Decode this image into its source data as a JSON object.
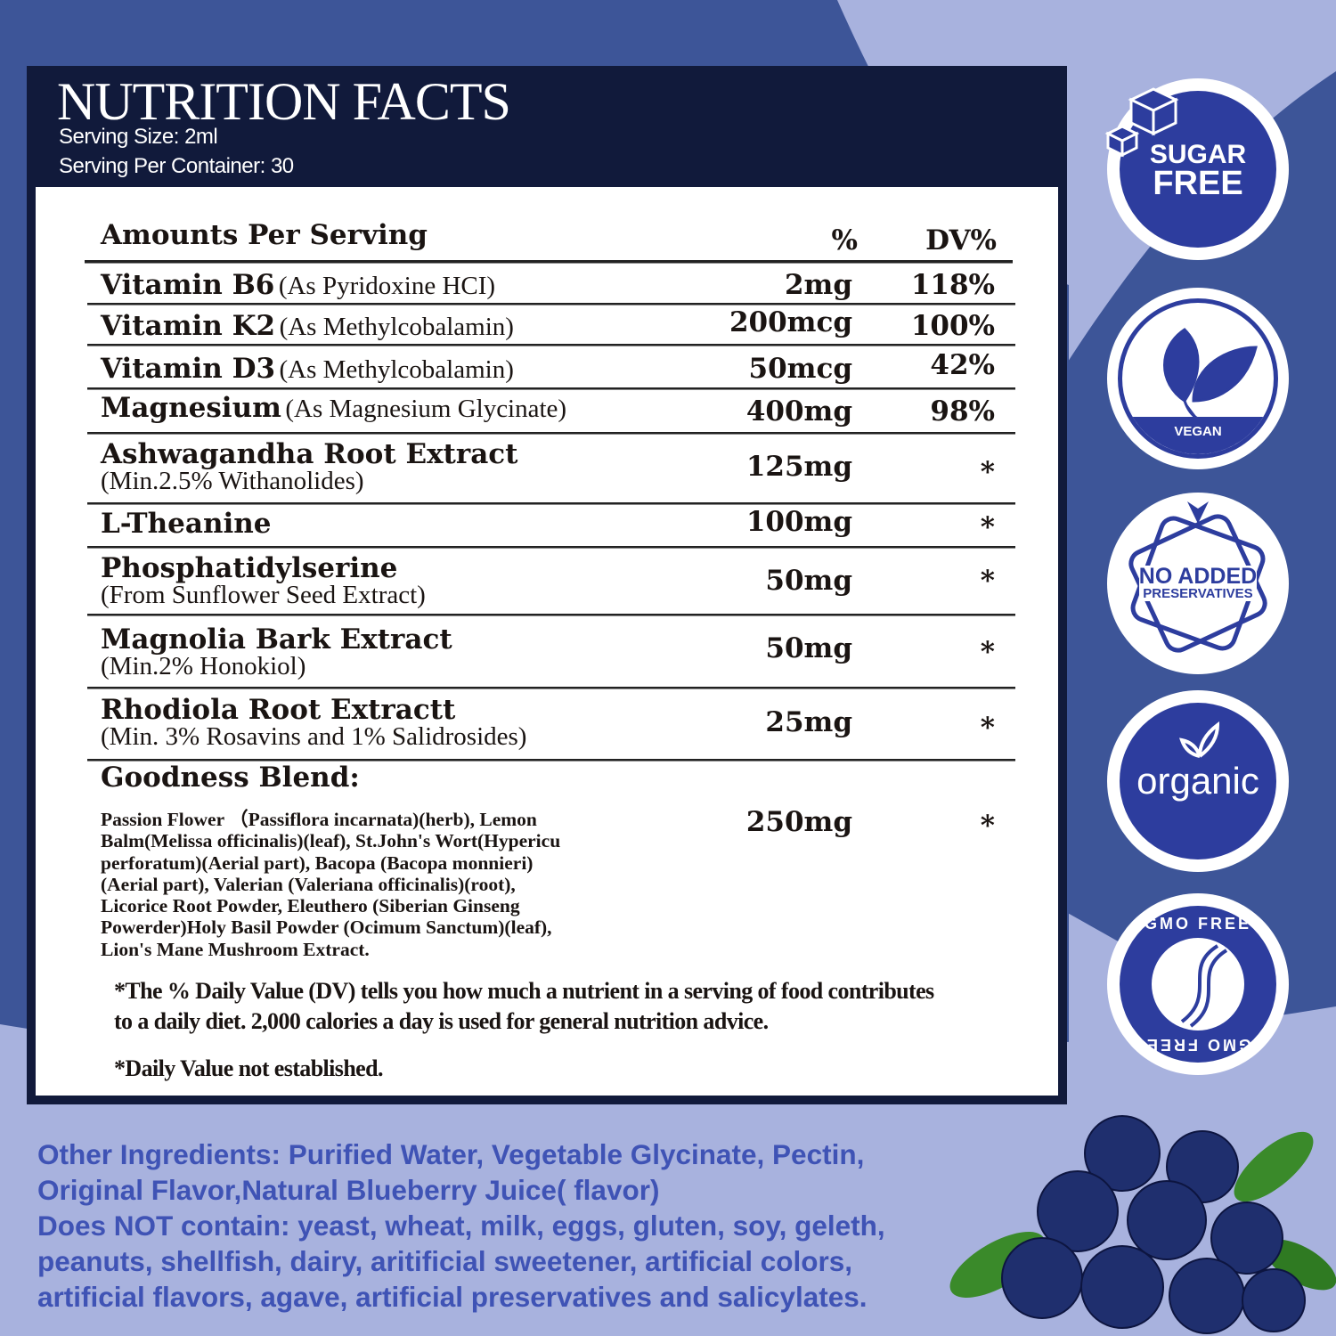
{
  "header": {
    "title": "NUTRITION FACTS",
    "serving_size": "Serving Size: 2ml",
    "servings_per_container": "Serving Per Container: 30"
  },
  "table": {
    "col_header": "Amounts Per Serving",
    "col_amount": "%",
    "col_dv": "DV%",
    "rows": [
      {
        "name": "Vitamin B6",
        "sub": "(As Pyridoxine HCI)",
        "amount": "2mg",
        "dv": "118%"
      },
      {
        "name": "Vitamin K2",
        "sub": "(As Methylcobalamin)",
        "amount": "200mcg",
        "dv": "100%"
      },
      {
        "name": "Vitamin D3",
        "sub": "(As Methylcobalamin)",
        "amount": "50mcg",
        "dv": "42%"
      },
      {
        "name": "Magnesium",
        "sub": "(As Magnesium Glycinate)",
        "amount": "400mg",
        "dv": "98%"
      },
      {
        "name": "Ashwagandha Root Extract",
        "sub": "(Min.2.5% Withanolides)",
        "amount": "125mg",
        "dv": "*"
      },
      {
        "name": "L-Theanine",
        "sub": "",
        "amount": "100mg",
        "dv": "*"
      },
      {
        "name": "Phosphatidylserine",
        "sub": "(From Sunflower Seed Extract)",
        "amount": "50mg",
        "dv": "*"
      },
      {
        "name": "Magnolia Bark Extract",
        "sub": "(Min.2% Honokiol)",
        "amount": "50mg",
        "dv": "*"
      },
      {
        "name": "Rhodiola Root Extractt",
        "sub": "(Min. 3% Rosavins and 1% Salidrosides)",
        "amount": "25mg",
        "dv": "*"
      },
      {
        "name": "Goodness Blend:",
        "sub": "Passion Flower （Passiflora incarnata)(herb), Lemon Balm(Melissa officinalis)(leaf), St.John's Wort(Hypericu perforatum)(Aerial part), Bacopa (Bacopa monnieri)(Aerial part), Valerian (Valeriana officinalis)(root), Licorice Root Powder, Eleuthero (Siberian Ginseng Powerder)Holy Basil Powder (Ocimum Sanctum)(leaf), Lion's Mane Mushroom Extract.",
        "amount": "250mg",
        "dv": "*"
      }
    ],
    "footnote1": "*The % Daily Value (DV) tells you how much a nutrient in a serving of food contributes",
    "footnote2": "to a daily diet. 2,000 calories a day is used for general nutrition advice.",
    "footnote3": "*Daily Value not established."
  },
  "other": {
    "lines": [
      "Other Ingredients: Purified Water, Vegetable Glycinate, Pectin,",
      "Original Flavor,Natural Blueberry Juice( flavor)",
      "Does NOT contain: yeast, wheat, milk, eggs, gluten, soy, geleth,",
      "peanuts, shellfish, dairy, aritificial sweetener, artificial colors,",
      "artificial flavors, agave, artificial preservatives and salicylates."
    ]
  },
  "badges": {
    "sugar1": "SUGAR",
    "sugar2": "FREE",
    "vegan": "VEGAN",
    "noadded1": "NO ADDED",
    "noadded2": "PRESERVATIVES",
    "organic": "organic",
    "gmo_top": "GMO FREE",
    "gmo_bottom": "GMO FREE"
  },
  "colors": {
    "navy": "#111a3b",
    "accent": "#2d3d9e",
    "text_blue": "#3f53b5",
    "bg": "#a8b2de",
    "bg_dark": "#3d5598"
  }
}
